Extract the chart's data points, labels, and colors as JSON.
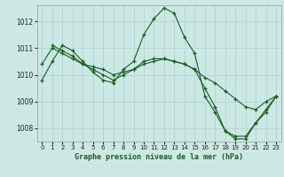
{
  "title": "Graphe pression niveau de la mer (hPa)",
  "bg_color": "#cce8e4",
  "grid_color": "#b0d4ce",
  "line_color": "#1a5c20",
  "xlim": [
    -0.5,
    23.5
  ],
  "ylim": [
    1007.5,
    1012.6
  ],
  "yticks": [
    1008,
    1009,
    1010,
    1011,
    1012
  ],
  "xticks": [
    0,
    1,
    2,
    3,
    4,
    5,
    6,
    7,
    8,
    9,
    10,
    11,
    12,
    13,
    14,
    15,
    16,
    17,
    18,
    19,
    20,
    21,
    22,
    23
  ],
  "series": [
    {
      "x": [
        0,
        1,
        2,
        3,
        4,
        5,
        6,
        7,
        8,
        9,
        10,
        11,
        12,
        13,
        14,
        15,
        16,
        17,
        18,
        19,
        20,
        21,
        22,
        23
      ],
      "y": [
        1009.8,
        1010.5,
        1011.1,
        1010.9,
        1010.5,
        1010.1,
        1009.8,
        1009.7,
        1010.2,
        1010.5,
        1011.5,
        1012.1,
        1012.5,
        1012.3,
        1011.4,
        1010.8,
        1009.2,
        1008.6,
        1007.9,
        1007.6,
        1007.6,
        1008.2,
        1008.7,
        1009.2
      ]
    },
    {
      "x": [
        0,
        1,
        2,
        3,
        4,
        5,
        6,
        7,
        8,
        9,
        10,
        11,
        12,
        13,
        14,
        15,
        16,
        17,
        18,
        19,
        20,
        21,
        22,
        23
      ],
      "y": [
        1010.4,
        1011.0,
        1010.8,
        1010.6,
        1010.4,
        1010.3,
        1010.2,
        1010.0,
        1010.1,
        1010.2,
        1010.4,
        1010.5,
        1010.6,
        1010.5,
        1010.4,
        1010.2,
        1009.9,
        1009.7,
        1009.4,
        1009.1,
        1008.8,
        1008.7,
        1009.0,
        1009.2
      ]
    },
    {
      "x": [
        1,
        2,
        3,
        4,
        5,
        6,
        7,
        8,
        9,
        10,
        11,
        12,
        13,
        14,
        15,
        16,
        17,
        18,
        19,
        20,
        21,
        22,
        23
      ],
      "y": [
        1011.1,
        1010.9,
        1010.7,
        1010.4,
        1010.2,
        1010.0,
        1009.8,
        1010.0,
        1010.2,
        1010.5,
        1010.6,
        1010.6,
        1010.5,
        1010.4,
        1010.2,
        1009.5,
        1008.8,
        1007.9,
        1007.7,
        1007.7,
        1008.2,
        1008.6,
        1009.2
      ]
    }
  ]
}
